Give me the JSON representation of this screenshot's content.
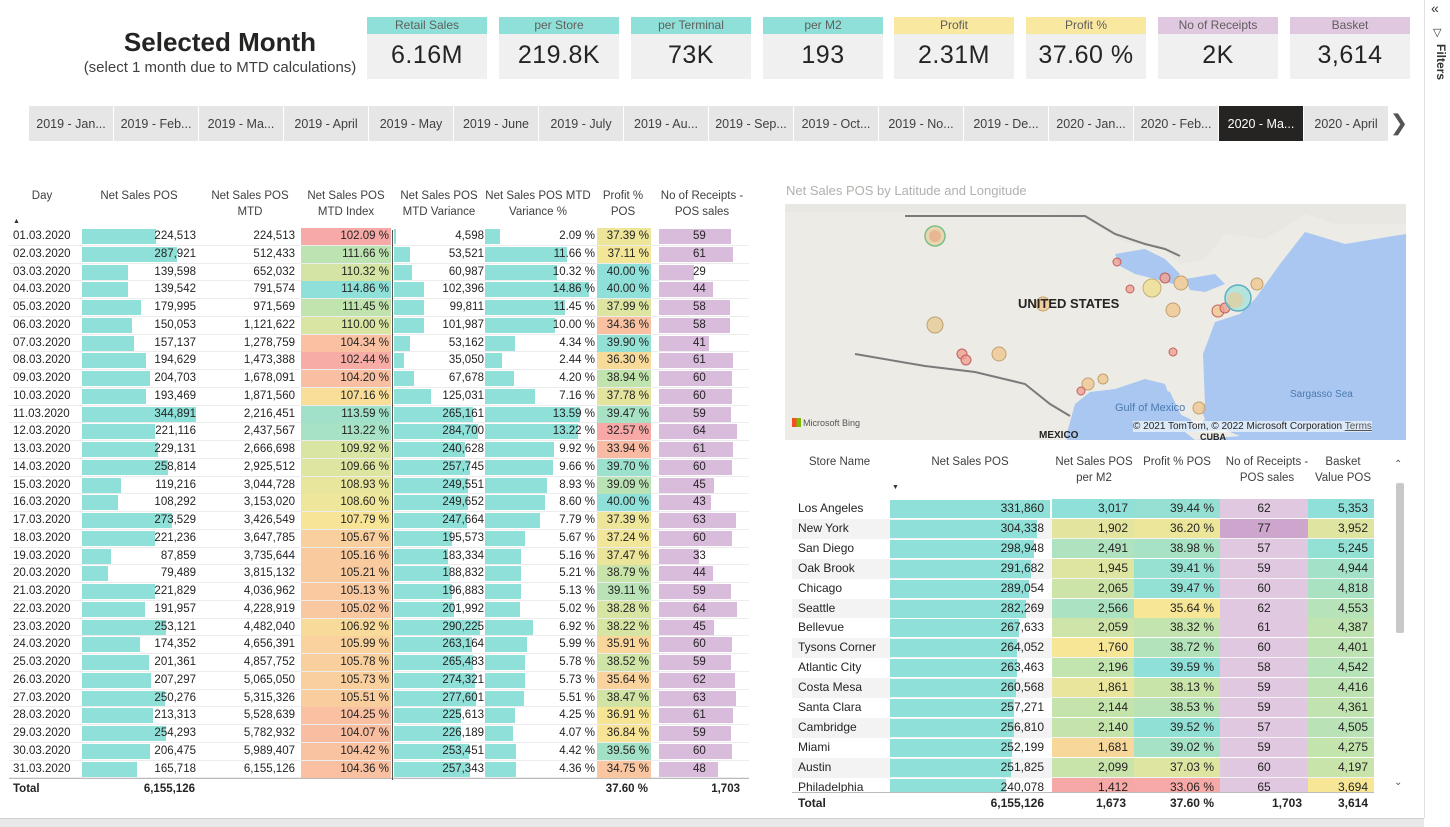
{
  "title": {
    "main": "Selected Month",
    "sub": "(select 1 month due to MTD calculations)"
  },
  "kpis": [
    {
      "label": "Retail Sales",
      "value": "6.16M",
      "color": "#8ee0d8"
    },
    {
      "label": "per Store",
      "value": "219.8K",
      "color": "#8ee0d8"
    },
    {
      "label": "per Terminal",
      "value": "73K",
      "color": "#8ee0d8"
    },
    {
      "label": "per M2",
      "value": "193",
      "color": "#8ee0d8"
    },
    {
      "label": "Profit",
      "value": "2.31M",
      "color": "#f8e8a0"
    },
    {
      "label": "Profit %",
      "value": "37.60 %",
      "color": "#f8e8a0"
    },
    {
      "label": "No of Receipts",
      "value": "2K",
      "color": "#e0c8e0"
    },
    {
      "label": "Basket",
      "value": "3,614",
      "color": "#e0c8e0"
    }
  ],
  "months": [
    "2019 - Jan...",
    "2019 - Feb...",
    "2019 - Ma...",
    "2019 - April",
    "2019 - May",
    "2019 - June",
    "2019 - July",
    "2019 - Au...",
    "2019 - Sep...",
    "2019 - Oct...",
    "2019 - No...",
    "2019 - De...",
    "2020 - Jan...",
    "2020 - Feb...",
    "2020 - Ma...",
    "2020 - April"
  ],
  "selected_month": "2020 - Ma...",
  "filters": {
    "label": "Filters",
    "collapse_icon": "«",
    "funnel_icon": "▽"
  },
  "daily": {
    "headers": [
      "Day",
      "Net Sales POS",
      "Net Sales POS MTD",
      "Net Sales POS MTD Index",
      "Net Sales POS MTD Variance",
      "Net Sales POS MTD Variance %",
      "Profit % POS",
      "No of Receipts - POS sales"
    ],
    "rows": [
      [
        "01.03.2020",
        "224,513",
        "224,513",
        "102.09 %",
        "4,598",
        "2.09 %",
        "37.39 %",
        "59"
      ],
      [
        "02.03.2020",
        "287,921",
        "512,433",
        "111.66 %",
        "53,521",
        "11.66 %",
        "37.11 %",
        "61"
      ],
      [
        "03.03.2020",
        "139,598",
        "652,032",
        "110.32 %",
        "60,987",
        "10.32 %",
        "40.00 %",
        "29"
      ],
      [
        "04.03.2020",
        "139,542",
        "791,574",
        "114.86 %",
        "102,396",
        "14.86 %",
        "40.00 %",
        "44"
      ],
      [
        "05.03.2020",
        "179,995",
        "971,569",
        "111.45 %",
        "99,811",
        "11.45 %",
        "37.99 %",
        "58"
      ],
      [
        "06.03.2020",
        "150,053",
        "1,121,622",
        "110.00 %",
        "101,987",
        "10.00 %",
        "34.36 %",
        "58"
      ],
      [
        "07.03.2020",
        "157,137",
        "1,278,759",
        "104.34 %",
        "53,162",
        "4.34 %",
        "39.90 %",
        "41"
      ],
      [
        "08.03.2020",
        "194,629",
        "1,473,388",
        "102.44 %",
        "35,050",
        "2.44 %",
        "36.30 %",
        "61"
      ],
      [
        "09.03.2020",
        "204,703",
        "1,678,091",
        "104.20 %",
        "67,678",
        "4.20 %",
        "38.94 %",
        "60"
      ],
      [
        "10.03.2020",
        "193,469",
        "1,871,560",
        "107.16 %",
        "125,031",
        "7.16 %",
        "37.78 %",
        "60"
      ],
      [
        "11.03.2020",
        "344,891",
        "2,216,451",
        "113.59 %",
        "265,161",
        "13.59 %",
        "39.47 %",
        "59"
      ],
      [
        "12.03.2020",
        "221,116",
        "2,437,567",
        "113.22 %",
        "284,700",
        "13.22 %",
        "32.57 %",
        "64"
      ],
      [
        "13.03.2020",
        "229,131",
        "2,666,698",
        "109.92 %",
        "240,628",
        "9.92 %",
        "33.94 %",
        "61"
      ],
      [
        "14.03.2020",
        "258,814",
        "2,925,512",
        "109.66 %",
        "257,745",
        "9.66 %",
        "39.70 %",
        "60"
      ],
      [
        "15.03.2020",
        "119,216",
        "3,044,728",
        "108.93 %",
        "249,551",
        "8.93 %",
        "39.09 %",
        "45"
      ],
      [
        "16.03.2020",
        "108,292",
        "3,153,020",
        "108.60 %",
        "249,652",
        "8.60 %",
        "40.00 %",
        "43"
      ],
      [
        "17.03.2020",
        "273,529",
        "3,426,549",
        "107.79 %",
        "247,664",
        "7.79 %",
        "37.39 %",
        "63"
      ],
      [
        "18.03.2020",
        "221,236",
        "3,647,785",
        "105.67 %",
        "195,573",
        "5.67 %",
        "37.24 %",
        "60"
      ],
      [
        "19.03.2020",
        "87,859",
        "3,735,644",
        "105.16 %",
        "183,334",
        "5.16 %",
        "37.47 %",
        "33"
      ],
      [
        "20.03.2020",
        "79,489",
        "3,815,132",
        "105.21 %",
        "188,832",
        "5.21 %",
        "38.79 %",
        "44"
      ],
      [
        "21.03.2020",
        "221,829",
        "4,036,962",
        "105.13 %",
        "196,883",
        "5.13 %",
        "39.11 %",
        "59"
      ],
      [
        "22.03.2020",
        "191,957",
        "4,228,919",
        "105.02 %",
        "201,992",
        "5.02 %",
        "38.28 %",
        "64"
      ],
      [
        "23.03.2020",
        "253,121",
        "4,482,040",
        "106.92 %",
        "290,225",
        "6.92 %",
        "38.22 %",
        "45"
      ],
      [
        "24.03.2020",
        "174,352",
        "4,656,391",
        "105.99 %",
        "263,164",
        "5.99 %",
        "35.91 %",
        "60"
      ],
      [
        "25.03.2020",
        "201,361",
        "4,857,752",
        "105.78 %",
        "265,483",
        "5.78 %",
        "38.52 %",
        "59"
      ],
      [
        "26.03.2020",
        "207,297",
        "5,065,050",
        "105.73 %",
        "274,321",
        "5.73 %",
        "35.64 %",
        "62"
      ],
      [
        "27.03.2020",
        "250,276",
        "5,315,326",
        "105.51 %",
        "277,601",
        "5.51 %",
        "38.47 %",
        "63"
      ],
      [
        "28.03.2020",
        "213,313",
        "5,528,639",
        "104.25 %",
        "225,613",
        "4.25 %",
        "36.91 %",
        "61"
      ],
      [
        "29.03.2020",
        "254,293",
        "5,782,932",
        "104.07 %",
        "226,189",
        "4.07 %",
        "36.84 %",
        "59"
      ],
      [
        "30.03.2020",
        "206,475",
        "5,989,407",
        "104.42 %",
        "253,451",
        "4.42 %",
        "39.56 %",
        "60"
      ],
      [
        "31.03.2020",
        "165,718",
        "6,155,126",
        "104.36 %",
        "257,343",
        "4.36 %",
        "34.75 %",
        "48"
      ]
    ],
    "total": {
      "label": "Total",
      "net_sales": "6,155,126",
      "profit_pct": "37.60 %",
      "receipts": "1,703"
    }
  },
  "map": {
    "title": "Net Sales POS by Latitude and Longitude",
    "labels": {
      "country": "UNITED STATES",
      "mexico": "MEXICO",
      "cuba": "CUBA",
      "gulf": "Gulf of Mexico",
      "sargasso": "Sargasso Sea"
    },
    "bing": "Microsoft Bing",
    "copyright": "© 2021 TomTom, © 2022 Microsoft Corporation",
    "terms": "Terms"
  },
  "stores": {
    "headers": [
      "Store Name",
      "Net Sales POS",
      "Net Sales POS per M2",
      "Profit % POS",
      "No of Receipts - POS sales",
      "Basket Value POS"
    ],
    "rows": [
      [
        "Los Angeles",
        "331,860",
        "3,017",
        "39.44 %",
        "62",
        "5,353"
      ],
      [
        "New York",
        "304,338",
        "1,902",
        "36.20 %",
        "77",
        "3,952"
      ],
      [
        "San Diego",
        "298,948",
        "2,491",
        "38.98 %",
        "57",
        "5,245"
      ],
      [
        "Oak Brook",
        "291,682",
        "1,945",
        "39.41 %",
        "59",
        "4,944"
      ],
      [
        "Chicago",
        "289,054",
        "2,065",
        "39.47 %",
        "60",
        "4,818"
      ],
      [
        "Seattle",
        "282,269",
        "2,566",
        "35.64 %",
        "62",
        "4,553"
      ],
      [
        "Bellevue",
        "267,633",
        "2,059",
        "38.32 %",
        "61",
        "4,387"
      ],
      [
        "Tysons Corner",
        "264,052",
        "1,760",
        "38.72 %",
        "60",
        "4,401"
      ],
      [
        "Atlantic City",
        "263,463",
        "2,196",
        "39.59 %",
        "58",
        "4,542"
      ],
      [
        "Costa Mesa",
        "260,568",
        "1,861",
        "38.13 %",
        "59",
        "4,416"
      ],
      [
        "Santa Clara",
        "257,271",
        "2,144",
        "38.53 %",
        "59",
        "4,361"
      ],
      [
        "Cambridge",
        "256,810",
        "2,140",
        "39.52 %",
        "57",
        "4,505"
      ],
      [
        "Miami",
        "252,199",
        "1,681",
        "39.02 %",
        "59",
        "4,275"
      ],
      [
        "Austin",
        "251,825",
        "2,099",
        "37.03 %",
        "60",
        "4,197"
      ],
      [
        "Philadelphia",
        "240,078",
        "1,412",
        "33.06 %",
        "65",
        "3,694"
      ]
    ],
    "total": {
      "label": "Total",
      "net_sales": "6,155,126",
      "per_m2": "1,673",
      "profit_pct": "37.60 %",
      "receipts": "1,703",
      "basket": "3,614"
    }
  },
  "colors": {
    "teal": "#8ee0d8",
    "selected": "#252423",
    "slicer": "#e6e6e6"
  }
}
